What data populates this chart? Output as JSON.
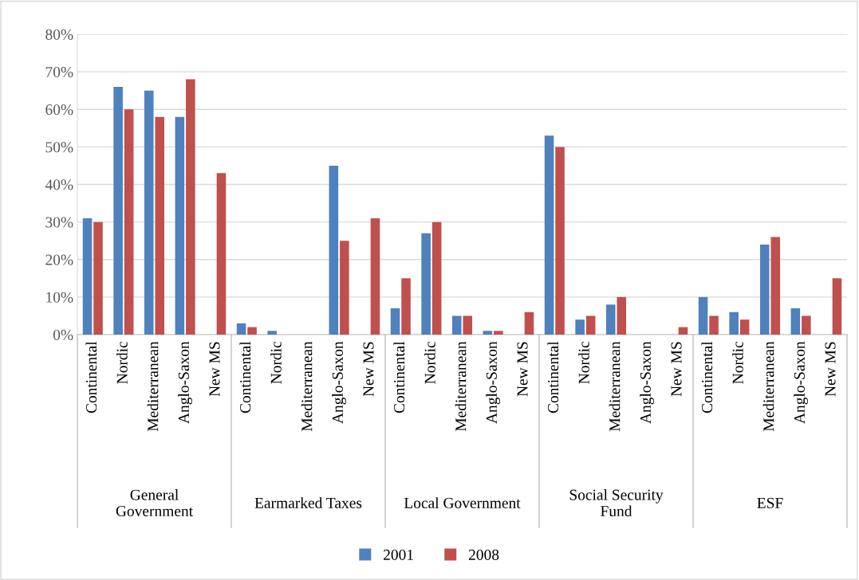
{
  "chart_data": {
    "type": "bar",
    "categories": [
      "Continental",
      "Nordic",
      "Mediterranean",
      "Anglo-Saxon",
      "New MS",
      "Continental",
      "Nordic",
      "Mediterranean",
      "Anglo-Saxon",
      "New MS",
      "Continental",
      "Nordic",
      "Mediterranean",
      "Anglo-Saxon",
      "New MS",
      "Continental",
      "Nordic",
      "Mediterranean",
      "Anglo-Saxon",
      "New MS",
      "Continental",
      "Nordic",
      "Mediterranean",
      "Anglo-Saxon",
      "New MS"
    ],
    "annotations": [
      "General\nGovernment",
      "Earmarked Taxes",
      "Local Government",
      "Social Security\nFund",
      "ESF"
    ],
    "series": [
      {
        "name": "2001",
        "color": "#4f81bd",
        "values": [
          31,
          66,
          65,
          58,
          null,
          3,
          1,
          null,
          45,
          null,
          7,
          27,
          5,
          1,
          null,
          53,
          4,
          8,
          null,
          null,
          10,
          6,
          24,
          7,
          null
        ]
      },
      {
        "name": "2008",
        "color": "#c0504d",
        "values": [
          30,
          60,
          58,
          68,
          43,
          2,
          null,
          null,
          25,
          31,
          15,
          30,
          5,
          1,
          6,
          50,
          5,
          10,
          null,
          2,
          5,
          4,
          26,
          5,
          15
        ]
      }
    ],
    "ylim": [
      0,
      80
    ],
    "yticks": [
      {
        "value": 0,
        "label": "0%"
      },
      {
        "value": 10,
        "label": "10%"
      },
      {
        "value": 20,
        "label": "20%"
      },
      {
        "value": 30,
        "label": "30%"
      },
      {
        "value": 40,
        "label": "40%"
      },
      {
        "value": 50,
        "label": "50%"
      },
      {
        "value": 60,
        "label": "60%"
      },
      {
        "value": 70,
        "label": "70%"
      },
      {
        "value": 80,
        "label": "80%"
      }
    ],
    "grid": "y",
    "legend": "bottom"
  }
}
